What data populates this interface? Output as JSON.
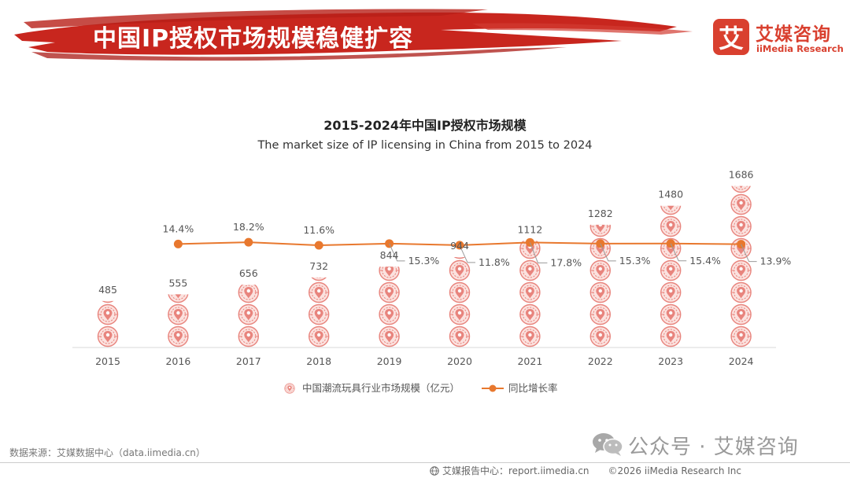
{
  "header": {
    "title": "中国IP授权市场规模稳健扩容"
  },
  "logo": {
    "mark": "艾",
    "name_cn": "艾媒咨询",
    "name_en": "iiMedia Research"
  },
  "chart_data": {
    "type": "bar",
    "title": "2015-2024年中国IP授权市场规模",
    "subtitle": "The market size of IP licensing in China from 2015 to 2024",
    "categories": [
      "2015",
      "2016",
      "2017",
      "2018",
      "2019",
      "2020",
      "2021",
      "2022",
      "2023",
      "2024"
    ],
    "bar_style": "pictograph (stacked circular icons)",
    "series": [
      {
        "name": "中国潮流玩具行业市场规模（亿元）",
        "type": "bar",
        "color": "#e8847d",
        "values": [
          485,
          555,
          656,
          732,
          844,
          944,
          1112,
          1282,
          1480,
          1686
        ],
        "labels": [
          "485",
          "555",
          "656",
          "732",
          "844",
          "944",
          "1112",
          "1282",
          "1480",
          "1686"
        ]
      },
      {
        "name": "同比增长率",
        "type": "line",
        "color": "#e8782e",
        "values": [
          null,
          14.4,
          18.2,
          11.6,
          15.3,
          11.8,
          17.8,
          15.3,
          15.4,
          13.9
        ],
        "labels": [
          "",
          "14.4%",
          "18.2%",
          "11.6%",
          "15.3%",
          "11.8%",
          "17.8%",
          "15.3%",
          "15.4%",
          "13.9%"
        ]
      }
    ],
    "grid": false,
    "legend_position": "bottom"
  },
  "source": "数据来源：艾媒数据中心（data.iimedia.cn）",
  "watermark": "公众号 · 艾媒咨询",
  "footer": {
    "text": "艾媒报告中心：report.iimedia.cn　　©2026  iiMedia Research  Inc"
  },
  "colors": {
    "brand_red": "#d9402f",
    "brush_red": "#c8261e",
    "bar_icon": "#e8847d",
    "line": "#e8782e"
  }
}
